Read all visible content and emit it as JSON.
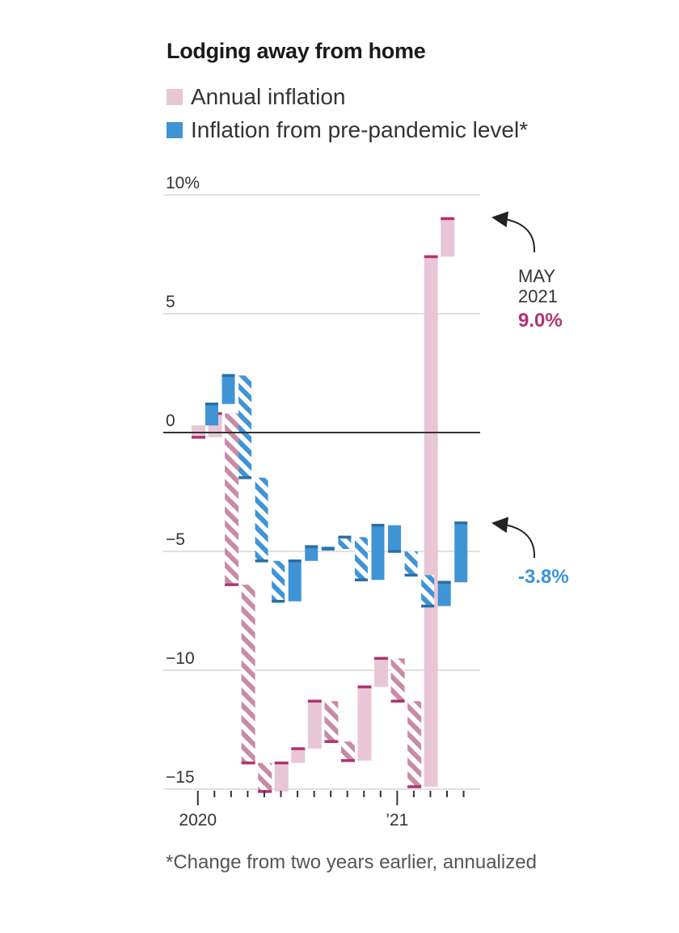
{
  "title": "Lodging away from home",
  "legend": [
    {
      "label": "Annual inflation",
      "color": "#e8c6d6"
    },
    {
      "label": "Inflation from pre-pandemic level*",
      "color": "#3f94d6"
    }
  ],
  "footnote": "*Change from two years earlier, annualized",
  "colors": {
    "pink_fill": "#e8c6d6",
    "pink_hatch": "#c98aa6",
    "pink_cap": "#b0336f",
    "blue_fill": "#3f94d6",
    "blue_cap": "#2a6fa3",
    "blue_text": "#3a93d8",
    "pink_text": "#b0336f"
  },
  "annotations": {
    "may_label_line1": "MAY",
    "may_label_line2": "2021",
    "may_annual_value": "9.0%",
    "may_prepandemic_value": "-3.8%"
  },
  "chart_data": {
    "type": "waterfall",
    "title": "Lodging away from home",
    "ylim": [
      -15,
      10
    ],
    "yticks": [
      10,
      5,
      0,
      -5,
      -10,
      -15
    ],
    "ytick_labels": [
      "10%",
      "5",
      "0",
      "−5",
      "−10",
      "−15"
    ],
    "x_labels": [
      {
        "month_index": 0,
        "label": "2020"
      },
      {
        "month_index": 12,
        "label": "’21"
      }
    ],
    "months": [
      "2020-01",
      "2020-02",
      "2020-03",
      "2020-04",
      "2020-05",
      "2020-06",
      "2020-07",
      "2020-08",
      "2020-09",
      "2020-10",
      "2020-11",
      "2020-12",
      "2021-01",
      "2021-02",
      "2021-03",
      "2021-04",
      "2021-05"
    ],
    "series": [
      {
        "name": "Annual inflation",
        "values": [
          -0.2,
          0.8,
          -6.4,
          -13.9,
          -15.1,
          -13.9,
          -13.3,
          -11.3,
          -13.0,
          -13.8,
          -10.7,
          -9.5,
          -11.3,
          -14.9,
          7.4,
          9.0
        ],
        "start_value": 0.3,
        "hatched": [
          false,
          false,
          true,
          true,
          true,
          false,
          false,
          false,
          true,
          true,
          false,
          false,
          true,
          true,
          false,
          false,
          false
        ]
      },
      {
        "name": "Inflation from pre-pandemic level*",
        "values": [
          1.2,
          2.4,
          -1.9,
          -5.4,
          -7.1,
          -5.4,
          -4.8,
          -4.9,
          -4.4,
          -6.2,
          -3.9,
          -5.0,
          -6.0,
          -7.3,
          -6.3,
          -3.8
        ],
        "start_value": 0.3,
        "hatched": [
          false,
          false,
          true,
          true,
          true,
          false,
          false,
          false,
          true,
          true,
          false,
          false,
          true,
          true,
          false,
          false,
          false
        ]
      }
    ]
  }
}
